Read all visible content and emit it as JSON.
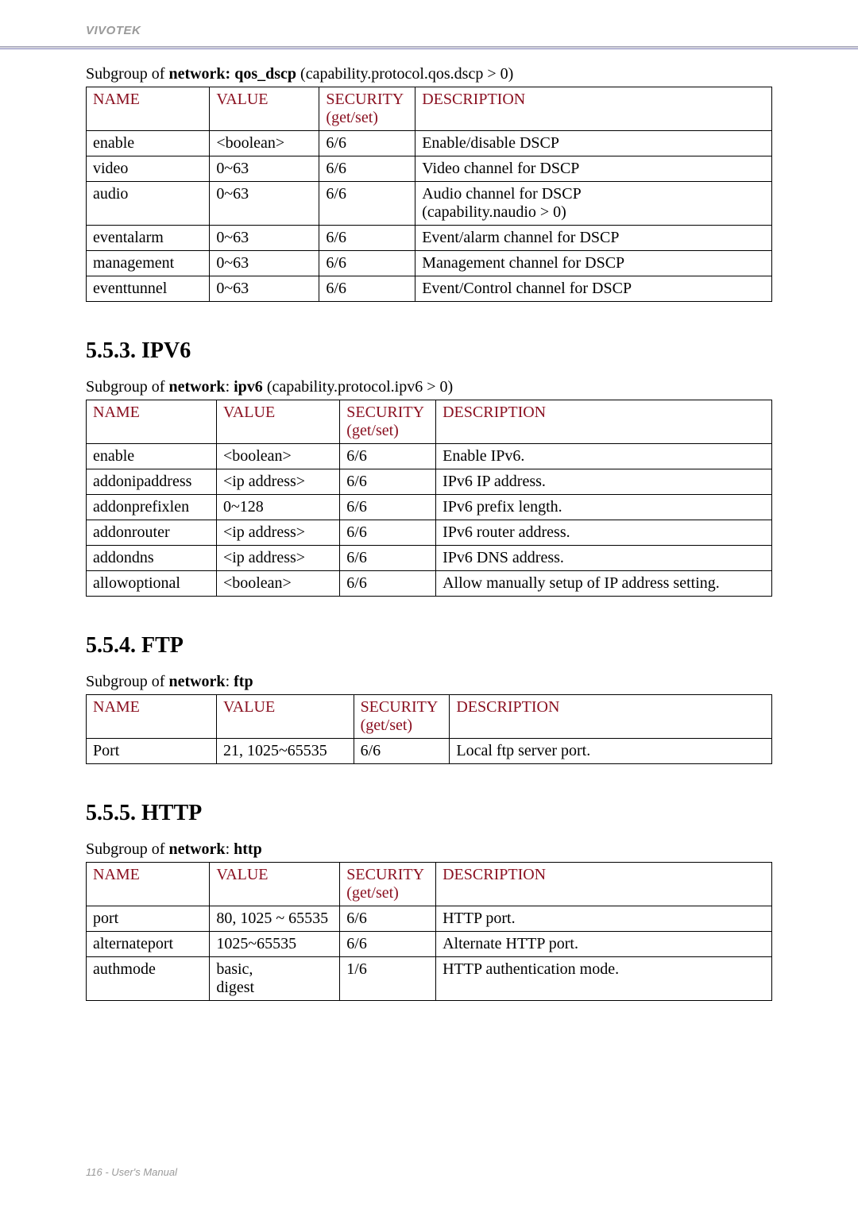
{
  "header": {
    "brand": "VIVOTEK"
  },
  "footer": {
    "text": "116 - User's Manual"
  },
  "sections": {
    "qos_dscp": {
      "subgroup_prefix": "Subgroup of ",
      "subgroup_bold": "network: qos_dscp",
      "subgroup_suffix": " (capability.protocol.qos.dscp > 0)",
      "headers": {
        "name": "NAME",
        "value": "VALUE",
        "security": "SECURITY",
        "security_sub": "(get/set)",
        "description": "DESCRIPTION"
      },
      "rows": [
        {
          "name": "enable",
          "value": "<boolean>",
          "sec": "6/6",
          "desc": "Enable/disable DSCP",
          "desc2": ""
        },
        {
          "name": "video",
          "value": "0~63",
          "sec": "6/6",
          "desc": "Video channel for DSCP",
          "desc2": ""
        },
        {
          "name": "audio",
          "value": "0~63",
          "sec": "6/6",
          "desc": "Audio channel for DSCP",
          "desc2": "(capability.naudio > 0)"
        },
        {
          "name": "eventalarm",
          "value": "0~63",
          "sec": "6/6",
          "desc": "Event/alarm channel for DSCP",
          "desc2": ""
        },
        {
          "name": "management",
          "value": "0~63",
          "sec": "6/6",
          "desc": "Management channel for DSCP",
          "desc2": ""
        },
        {
          "name": "eventtunnel",
          "value": "0~63",
          "sec": "6/6",
          "desc": "Event/Control channel for DSCP",
          "desc2": ""
        }
      ]
    },
    "ipv6": {
      "heading": "5.5.3. IPV6",
      "subgroup_prefix": "Subgroup of ",
      "subgroup_bold": "network",
      "subgroup_mid": ": ",
      "subgroup_bold2": "ipv6",
      "subgroup_suffix": " (capability.protocol.ipv6 > 0)",
      "headers": {
        "name": "NAME",
        "value": "VALUE",
        "security": "SECURITY",
        "security_sub": "(get/set)",
        "description": "DESCRIPTION"
      },
      "rows": [
        {
          "name": "enable",
          "value": "<boolean>",
          "sec": "6/6",
          "desc": "Enable IPv6."
        },
        {
          "name": "addonipaddress",
          "value": "<ip address>",
          "sec": "6/6",
          "desc": "IPv6 IP address."
        },
        {
          "name": "addonprefixlen",
          "value": "0~128",
          "sec": "6/6",
          "desc": "IPv6 prefix length."
        },
        {
          "name": "addonrouter",
          "value": "<ip address>",
          "sec": "6/6",
          "desc": "IPv6 router address."
        },
        {
          "name": "addondns",
          "value": "<ip address>",
          "sec": "6/6",
          "desc": "IPv6 DNS address."
        },
        {
          "name": "allowoptional",
          "value": "<boolean>",
          "sec": "6/6",
          "desc": "Allow manually setup of IP address setting."
        }
      ]
    },
    "ftp": {
      "heading": "5.5.4. FTP",
      "subgroup_prefix": "Subgroup of ",
      "subgroup_bold": "network",
      "subgroup_mid": ": ",
      "subgroup_bold2": "ftp",
      "headers": {
        "name": "NAME",
        "value": "VALUE",
        "security": "SECURITY",
        "security_sub": "(get/set)",
        "description": "DESCRIPTION"
      },
      "rows": [
        {
          "name": "Port",
          "value": "21, 1025~65535",
          "sec": "6/6",
          "desc": "Local ftp server port."
        }
      ]
    },
    "http": {
      "heading": "5.5.5. HTTP",
      "subgroup_prefix": "Subgroup of ",
      "subgroup_bold": "network",
      "subgroup_mid": ": ",
      "subgroup_bold2": "http",
      "headers": {
        "name": "NAME",
        "value": "VALUE",
        "security": "SECURITY",
        "security_sub": "(get/set)",
        "description": "DESCRIPTION"
      },
      "rows": [
        {
          "name": "port",
          "value": "80, 1025 ~ 65535",
          "sec": "6/6",
          "desc": "HTTP port."
        },
        {
          "name": "alternateport",
          "value": "1025~65535",
          "sec": "6/6",
          "desc": "Alternate HTTP port."
        },
        {
          "name": "authmode",
          "value": "basic,",
          "value2": "digest",
          "sec": "1/6",
          "desc": "HTTP authentication mode."
        }
      ]
    }
  },
  "style": {
    "header_color": "#8a1020",
    "text_color": "#000000",
    "brand_color": "#9a9a9a",
    "border_color": "#000000",
    "body_fontsize_pt": 15,
    "heading_fontsize_pt": 21
  }
}
